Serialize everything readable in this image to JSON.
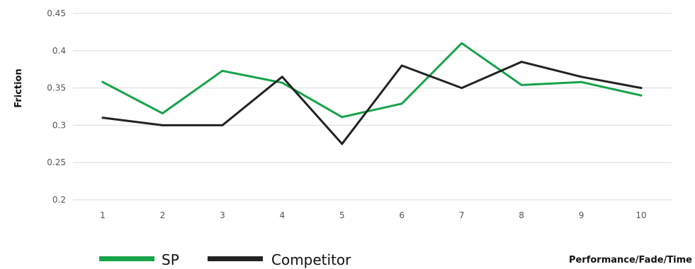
{
  "chart_data": {
    "type": "line",
    "title": "",
    "xlabel": "Performance/Fade/Time",
    "ylabel": "Friction",
    "categories": [
      "1",
      "2",
      "3",
      "4",
      "5",
      "6",
      "7",
      "8",
      "9",
      "10"
    ],
    "ylim": [
      0.2,
      0.45
    ],
    "yticks": [
      "0.2",
      "0.25",
      "0.3",
      "0.35",
      "0.4",
      "0.45"
    ],
    "grid": true,
    "legend_position": "bottom-left",
    "series": [
      {
        "name": "SP",
        "color": "#16a34a",
        "values": [
          0.358,
          0.316,
          0.373,
          0.357,
          0.311,
          0.329,
          0.41,
          0.354,
          0.358,
          0.34
        ]
      },
      {
        "name": "Competitor",
        "color": "#222222",
        "values": [
          0.31,
          0.3,
          0.3,
          0.365,
          0.275,
          0.38,
          0.35,
          0.385,
          0.365,
          0.35
        ]
      }
    ]
  }
}
